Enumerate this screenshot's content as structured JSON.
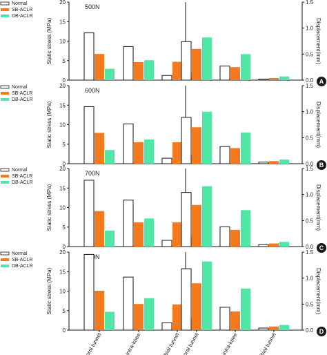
{
  "figure": {
    "legend": [
      "Normal",
      "SB-ACLR",
      "DB-ACLR"
    ],
    "colors": {
      "Normal": "#ffffff",
      "SB-ACLR": "#f47a1f",
      "DB-ACLR": "#4fe6a6",
      "stroke": "#111111"
    },
    "y_left_label": "Static stress (MPa)",
    "y_right_label": "Displacement(mm)",
    "categories": [
      "femoral tunnel",
      "intra-knee",
      "tibial tunnel"
    ]
  },
  "chart_data": [
    {
      "type": "bar",
      "title": "500N",
      "panel_label": "A",
      "categories": [
        "femoral tunnel",
        "intra-knee",
        "tibial tunnel"
      ],
      "stress": {
        "ylim": [
          0,
          20
        ],
        "yticks": [
          0,
          5,
          10,
          15,
          20
        ],
        "series": [
          {
            "name": "Normal",
            "values": [
              12.1,
              8.6,
              1.2
            ]
          },
          {
            "name": "SB-ACLR",
            "values": [
              6.7,
              4.6,
              4.7
            ]
          },
          {
            "name": "DB-ACLR",
            "values": [
              2.9,
              5.1,
              1.9
            ]
          }
        ]
      },
      "displacement": {
        "ylim": [
          0,
          1.5
        ],
        "yticks": [
          "0.0",
          "0.5",
          "1.0",
          "1.5"
        ],
        "series": [
          {
            "name": "Normal",
            "values": [
              0.74,
              0.27,
              0.02
            ]
          },
          {
            "name": "SB-ACLR",
            "values": [
              0.6,
              0.25,
              0.04
            ]
          },
          {
            "name": "DB-ACLR",
            "values": [
              0.82,
              0.5,
              0.07
            ]
          }
        ]
      }
    },
    {
      "type": "bar",
      "title": "600N",
      "panel_label": "B",
      "categories": [
        "femoral tunnel",
        "intra-knee",
        "tibial tunnel"
      ],
      "stress": {
        "ylim": [
          0,
          20
        ],
        "yticks": [
          0,
          5,
          10,
          15,
          20
        ],
        "series": [
          {
            "name": "Normal",
            "values": [
              14.6,
              10.2,
              1.4
            ]
          },
          {
            "name": "SB-ACLR",
            "values": [
              7.9,
              5.5,
              5.5
            ]
          },
          {
            "name": "DB-ACLR",
            "values": [
              3.5,
              6.2,
              2.3
            ]
          }
        ]
      },
      "displacement": {
        "ylim": [
          0,
          1.5
        ],
        "yticks": [
          "0.0",
          "0.5",
          "1.0",
          "1.5"
        ],
        "series": [
          {
            "name": "Normal",
            "values": [
              0.89,
              0.33,
              0.03
            ]
          },
          {
            "name": "SB-ACLR",
            "values": [
              0.7,
              0.3,
              0.05
            ]
          },
          {
            "name": "DB-ACLR",
            "values": [
              1.0,
              0.6,
              0.08
            ]
          }
        ]
      }
    },
    {
      "type": "bar",
      "title": "700N",
      "panel_label": "C",
      "categories": [
        "femoral tunnel",
        "intra-knee",
        "tibial tunnel"
      ],
      "stress": {
        "ylim": [
          0,
          20
        ],
        "yticks": [
          0,
          5,
          10,
          15,
          20
        ],
        "series": [
          {
            "name": "Normal",
            "values": [
              17.0,
              11.9,
              1.6
            ]
          },
          {
            "name": "SB-ACLR",
            "values": [
              9.1,
              6.2,
              6.2
            ]
          },
          {
            "name": "DB-ACLR",
            "values": [
              4.1,
              7.2,
              2.6
            ]
          }
        ]
      },
      "displacement": {
        "ylim": [
          0,
          1.5
        ],
        "yticks": [
          "0.0",
          "0.5",
          "1.0",
          "1.5"
        ],
        "series": [
          {
            "name": "Normal",
            "values": [
              1.04,
              0.38,
              0.04
            ]
          },
          {
            "name": "SB-ACLR",
            "values": [
              0.8,
              0.32,
              0.06
            ]
          },
          {
            "name": "DB-ACLR",
            "values": [
              1.16,
              0.7,
              0.09
            ]
          }
        ]
      }
    },
    {
      "type": "bar",
      "title": "800N",
      "panel_label": "D",
      "categories": [
        "femoral tunnel",
        "intra-knee",
        "tibial tunnel"
      ],
      "stress": {
        "ylim": [
          0,
          20
        ],
        "yticks": [
          0,
          5,
          10,
          15,
          20
        ],
        "series": [
          {
            "name": "Normal",
            "values": [
              19.4,
              13.6,
              1.9
            ]
          },
          {
            "name": "SB-ACLR",
            "values": [
              10.1,
              6.7,
              6.6
            ]
          },
          {
            "name": "DB-ACLR",
            "values": [
              4.7,
              8.2,
              3.0
            ]
          }
        ]
      },
      "displacement": {
        "ylim": [
          0,
          1.5
        ],
        "yticks": [
          "0.0",
          "0.5",
          "1.0",
          "1.5"
        ],
        "series": [
          {
            "name": "Normal",
            "values": [
              1.18,
              0.44,
              0.04
            ]
          },
          {
            "name": "SB-ACLR",
            "values": [
              0.9,
              0.36,
              0.07
            ]
          },
          {
            "name": "DB-ACLR",
            "values": [
              1.32,
              0.8,
              0.1
            ]
          }
        ]
      }
    }
  ]
}
